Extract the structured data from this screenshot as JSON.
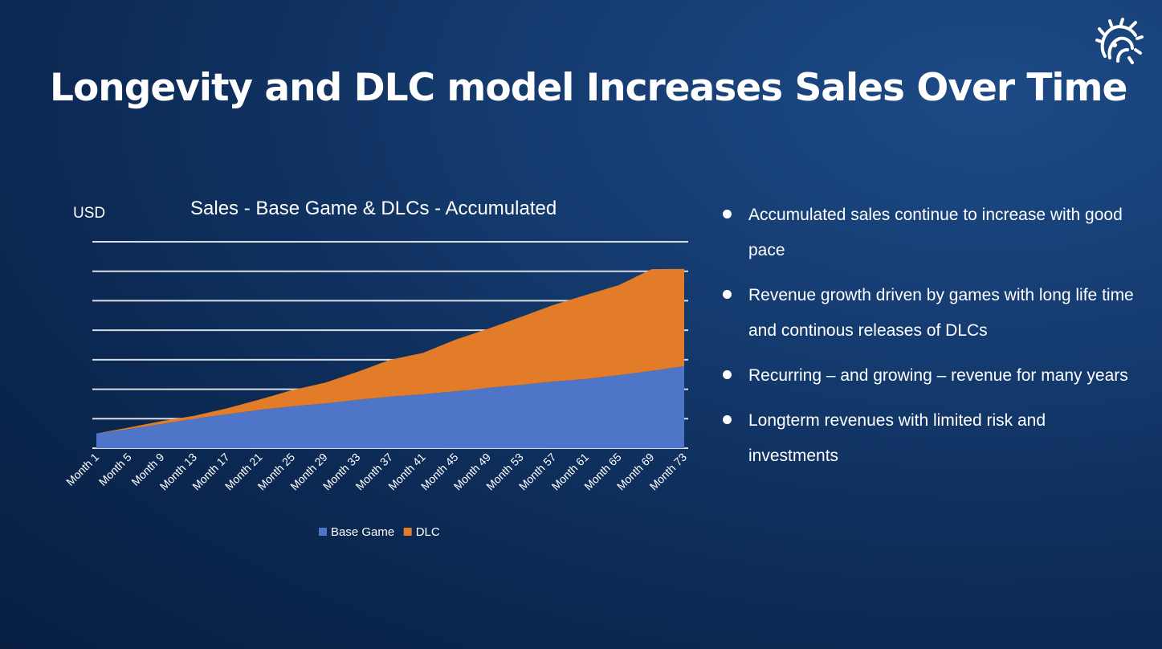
{
  "slide": {
    "title": "Longevity and DLC model Increases Sales Over Time",
    "logo_icon": "paradox-logo-icon"
  },
  "bullets": [
    "Accumulated sales continue to increase with good pace",
    "Revenue growth driven by games with long life time and continous releases of DLCs",
    "Recurring – and growing – revenue for many years",
    "Longterm revenues with limited risk and investments"
  ],
  "chart_data": {
    "type": "area",
    "stacked": true,
    "title": "Sales - Base Game & DLCs - Accumulated",
    "ylabel": "USD",
    "xlabel": "",
    "grid": true,
    "ylim": [
      0,
      7
    ],
    "legend_position": "bottom",
    "x_tick_labels": [
      "Month 1",
      "Month 5",
      "Month 9",
      "Month 13",
      "Month 17",
      "Month 21",
      "Month 25",
      "Month 29",
      "Month 33",
      "Month 37",
      "Month 41",
      "Month 45",
      "Month 49",
      "Month 53",
      "Month 57",
      "Month 61",
      "Month 65",
      "Month 69",
      "Month 73"
    ],
    "x": [
      1,
      5,
      9,
      13,
      17,
      21,
      25,
      29,
      33,
      37,
      41,
      45,
      49,
      53,
      57,
      61,
      65,
      69,
      73
    ],
    "series": [
      {
        "name": "Base Game",
        "color": "#4f75c8",
        "values": [
          0.5,
          0.65,
          0.82,
          1.0,
          1.15,
          1.3,
          1.42,
          1.52,
          1.64,
          1.75,
          1.83,
          1.93,
          2.05,
          2.15,
          2.26,
          2.35,
          2.48,
          2.62,
          2.78
        ]
      },
      {
        "name": "DLC",
        "color": "#e27c28",
        "values": [
          0.0,
          0.05,
          0.1,
          0.1,
          0.2,
          0.35,
          0.55,
          0.7,
          0.95,
          1.25,
          1.4,
          1.75,
          2.0,
          2.3,
          2.6,
          2.85,
          3.05,
          3.45,
          3.3
        ]
      }
    ]
  }
}
